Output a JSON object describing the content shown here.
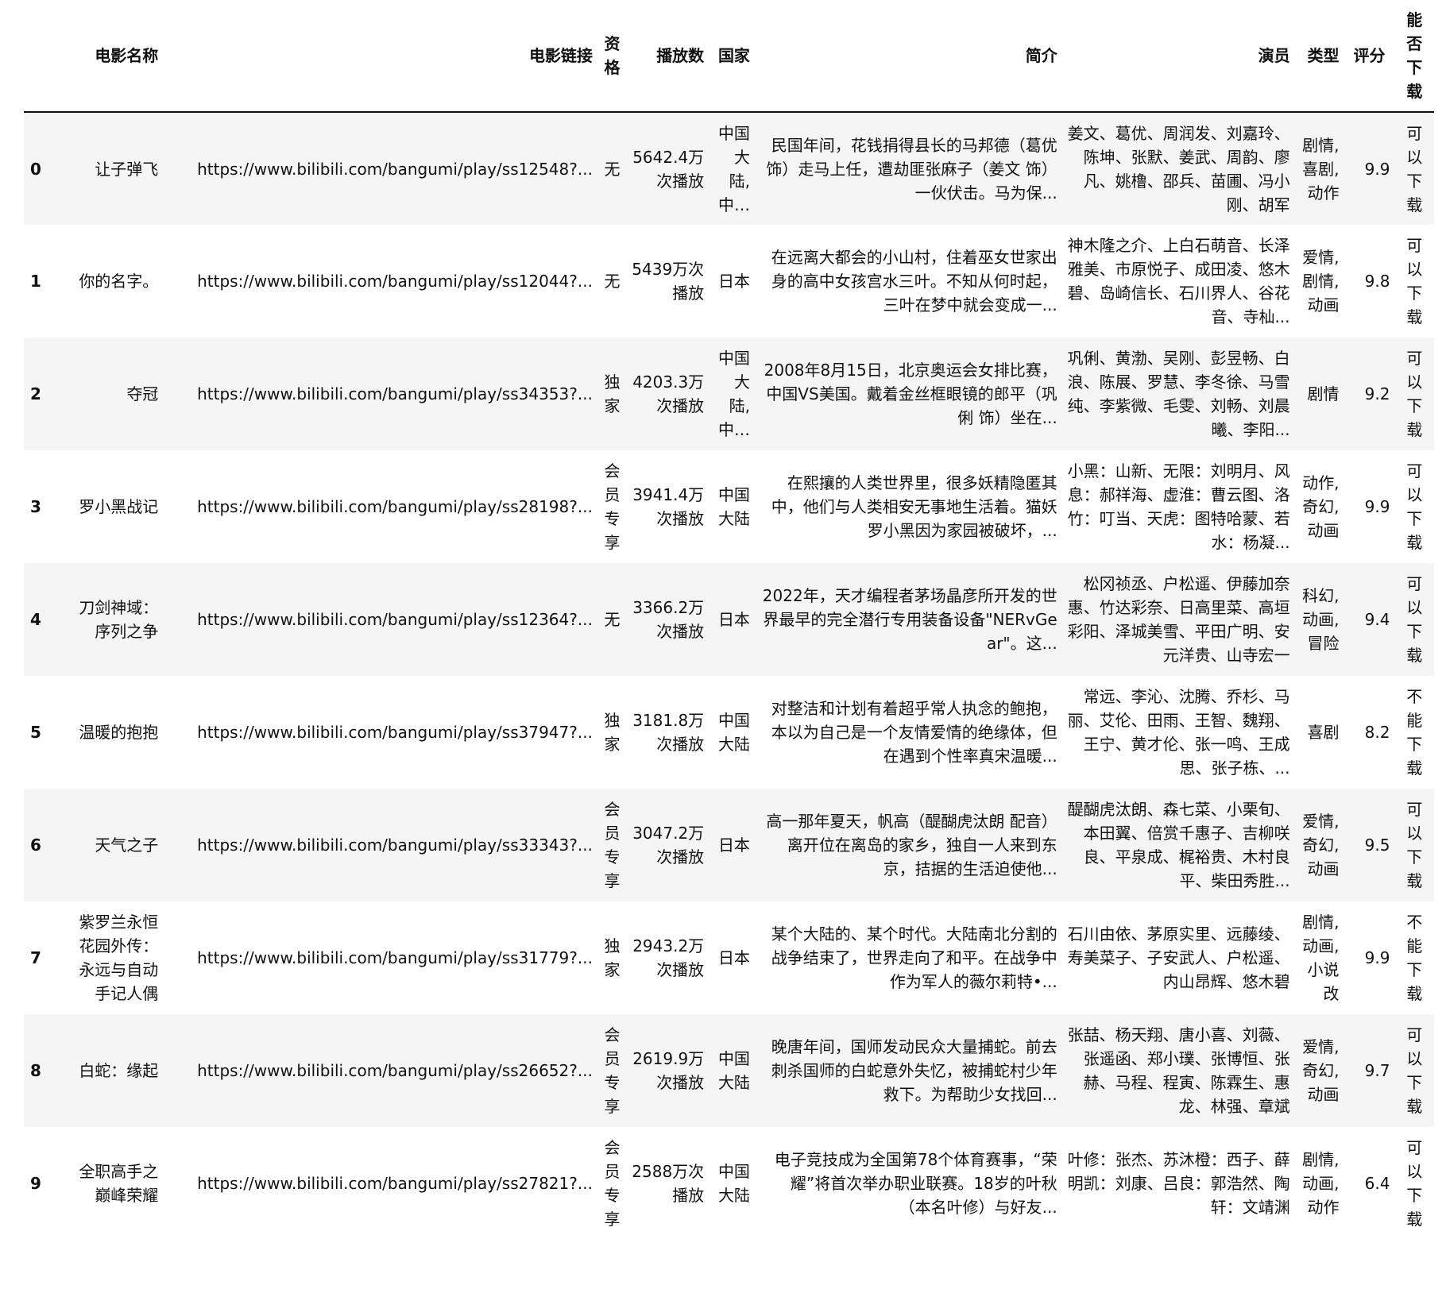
{
  "table": {
    "columns": [
      "",
      "电影名称",
      "电影链接",
      "资格",
      "播放数",
      "国家",
      "简介",
      "演员",
      "类型",
      "评分",
      "能否下载"
    ],
    "rows": [
      {
        "index": "0",
        "name": "让子弹飞",
        "link": "https://www.bilibili.com/bangumi/play/ss12548?...",
        "qualification": "无",
        "plays": "5642.4万次播放",
        "country": "中国大陆, 中国香港",
        "intro": "民国年间，花钱捐得县长的马邦德（葛优 饰）走马上任，遭劫匪张麻子（姜文 饰）一伙伏击。马为保...",
        "actors": "姜文、葛优、周润发、刘嘉玲、陈坤、张默、姜武、周韵、廖凡、姚橹、邵兵、苗圃、冯小刚、胡军",
        "genre": "剧情, 喜剧, 动作",
        "score": "9.9",
        "download": "可以下载"
      },
      {
        "index": "1",
        "name": "你的名字。",
        "link": "https://www.bilibili.com/bangumi/play/ss12044?...",
        "qualification": "无",
        "plays": "5439万次播放",
        "country": "日本",
        "intro": "在远离大都会的小山村，住着巫女世家出身的高中女孩宫水三叶。不知从何时起，三叶在梦中就会变成一...",
        "actors": "神木隆之介、上白石萌音、长泽雅美、市原悦子、成田凌、悠木碧、岛崎信长、石川界人、谷花音、寺杣...",
        "genre": "爱情, 剧情, 动画",
        "score": "9.8",
        "download": "可以下载"
      },
      {
        "index": "2",
        "name": "夺冠",
        "link": "https://www.bilibili.com/bangumi/play/ss34353?...",
        "qualification": "独家",
        "plays": "4203.3万次播放",
        "country": "中国大陆, 中国香港",
        "intro": "2008年8月15日，北京奥运会女排比赛，中国VS美国。戴着金丝框眼镜的郎平（巩俐 饰）坐在...",
        "actors": "巩俐、黄渤、吴刚、彭昱畅、白浪、陈展、罗慧、李冬徐、马雪纯、李紫微、毛雯、刘畅、刘晨曦、李阳...",
        "genre": "剧情",
        "score": "9.2",
        "download": "可以下载"
      },
      {
        "index": "3",
        "name": "罗小黑战记",
        "link": "https://www.bilibili.com/bangumi/play/ss28198?...",
        "qualification": "会员专享",
        "plays": "3941.4万次播放",
        "country": "中国大陆",
        "intro": "在熙攘的人类世界里，很多妖精隐匿其中，他们与人类相安无事地生活着。猫妖罗小黑因为家园被破坏，...",
        "actors": "小黑：山新、无限：刘明月、风息：郝祥海、虚淮：曹云图、洛竹：叮当、天虎：图特哈蒙、若水：杨凝...",
        "genre": "动作, 奇幻, 动画",
        "score": "9.9",
        "download": "可以下载"
      },
      {
        "index": "4",
        "name": "刀剑神域：序列之争",
        "link": "https://www.bilibili.com/bangumi/play/ss12364?...",
        "qualification": "无",
        "plays": "3366.2万次播放",
        "country": "日本",
        "intro": "2022年，天才编程者茅场晶彦所开发的世界最早的完全潜行专用装备设备\"NERvGear\"。这...",
        "actors": "松冈祯丞、户松遥、伊藤加奈惠、竹达彩奈、日高里菜、高垣彩阳、泽城美雪、平田广明、安元洋贵、山寺宏一",
        "genre": "科幻, 动画, 冒险",
        "score": "9.4",
        "download": "可以下载"
      },
      {
        "index": "5",
        "name": "温暖的抱抱",
        "link": "https://www.bilibili.com/bangumi/play/ss37947?...",
        "qualification": "独家",
        "plays": "3181.8万次播放",
        "country": "中国大陆",
        "intro": "对整洁和计划有着超乎常人执念的鲍抱，本以为自己是一个友情爱情的绝缘体，但在遇到个性率真宋温暖...",
        "actors": "常远、李沁、沈腾、乔杉、马丽、艾伦、田雨、王智、魏翔、王宁、黄才伦、张一鸣、王成思、张子栋、...",
        "genre": "喜剧",
        "score": "8.2",
        "download": "不能下载"
      },
      {
        "index": "6",
        "name": "天气之子",
        "link": "https://www.bilibili.com/bangumi/play/ss33343?...",
        "qualification": "会员专享",
        "plays": "3047.2万次播放",
        "country": "日本",
        "intro": "高一那年夏天，帆高（醍醐虎汰朗 配音）离开位在离岛的家乡，独自一人来到东京，拮据的生活迫使他...",
        "actors": "醍醐虎汰朗、森七菜、小栗旬、本田翼、倍赏千惠子、吉柳咲良、平泉成、梶裕贵、木村良平、柴田秀胜...",
        "genre": "爱情, 奇幻, 动画",
        "score": "9.5",
        "download": "可以下载"
      },
      {
        "index": "7",
        "name": "紫罗兰永恒花园外传：永远与自动手记人偶",
        "link": "https://www.bilibili.com/bangumi/play/ss31779?...",
        "qualification": "独家",
        "plays": "2943.2万次播放",
        "country": "日本",
        "intro": "某个大陆的、某个时代。大陆南北分割的战争结束了，世界走向了和平。在战争中作为军人的薇尔莉特•...",
        "actors": "石川由依、茅原实里、远藤绫、寿美菜子、子安武人、户松遥、内山昂辉、悠木碧",
        "genre": "剧情, 动画, 小说改",
        "score": "9.9",
        "download": "不能下载"
      },
      {
        "index": "8",
        "name": "白蛇：缘起",
        "link": "https://www.bilibili.com/bangumi/play/ss26652?...",
        "qualification": "会员专享",
        "plays": "2619.9万次播放",
        "country": "中国大陆",
        "intro": "晚唐年间，国师发动民众大量捕蛇。前去刺杀国师的白蛇意外失忆，被捕蛇村少年救下。为帮助少女找回...",
        "actors": "张喆、杨天翔、唐小喜、刘薇、张遥函、郑小璞、张博恒、张赫、马程、程寅、陈霖生、惠龙、林强、章斌",
        "genre": "爱情, 奇幻, 动画",
        "score": "9.7",
        "download": "可以下载"
      },
      {
        "index": "9",
        "name": "全职高手之巅峰荣耀",
        "link": "https://www.bilibili.com/bangumi/play/ss27821?...",
        "qualification": "会员专享",
        "plays": "2588万次播放",
        "country": "中国大陆",
        "intro": "电子竞技成为全国第78个体育赛事，“荣耀”将首次举办职业联赛。18岁的叶秋（本名叶修）与好友...",
        "actors": "叶修：张杰、苏沐橙：西子、薛明凯：刘康、吕良：郭浩然、陶轩：文靖渊",
        "genre": "剧情, 动画, 动作",
        "score": "6.4",
        "download": "可以下载"
      }
    ]
  }
}
